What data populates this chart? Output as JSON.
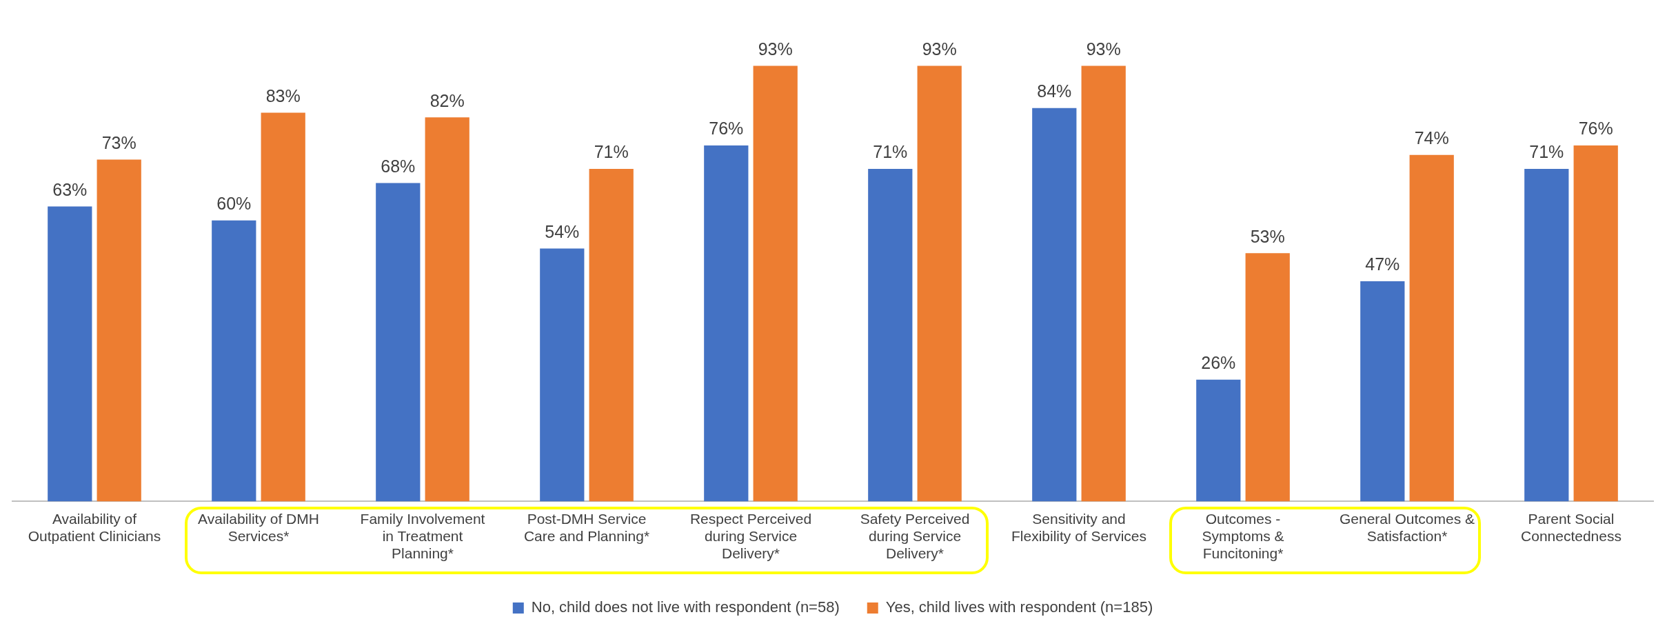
{
  "chart_data": {
    "type": "bar",
    "categories": [
      "Availability of Outpatient Clinicians",
      "Availability of DMH Services*",
      "Family Involvement in Treatment Planning*",
      "Post-DMH Service Care and Planning*",
      "Respect Perceived during Service Delivery*",
      "Safety Perceived during Service Delivery*",
      "Sensitivity and Flexibility of Services",
      "Outcomes - Symptoms & Funcitoning*",
      "General Outcomes & Satisfaction*",
      "Parent Social Connectedness"
    ],
    "series": [
      {
        "name": "No, child does not live with respondent (n=58)",
        "color": "#4472c4",
        "values": [
          63,
          60,
          68,
          54,
          76,
          71,
          84,
          26,
          47,
          71
        ],
        "value_labels": [
          "63%",
          "60%",
          "68%",
          "54%",
          "76%",
          "71%",
          "84%",
          "26%",
          "47%",
          "71%"
        ]
      },
      {
        "name": "Yes, child lives with respondent (n=185)",
        "color": "#ed7d31",
        "values": [
          73,
          83,
          82,
          71,
          93,
          93,
          93,
          53,
          74,
          76
        ],
        "value_labels": [
          "73%",
          "83%",
          "82%",
          "71%",
          "93%",
          "93%",
          "93%",
          "53%",
          "74%",
          "76%"
        ]
      }
    ],
    "grid": false,
    "legend": "bottom"
  }
}
